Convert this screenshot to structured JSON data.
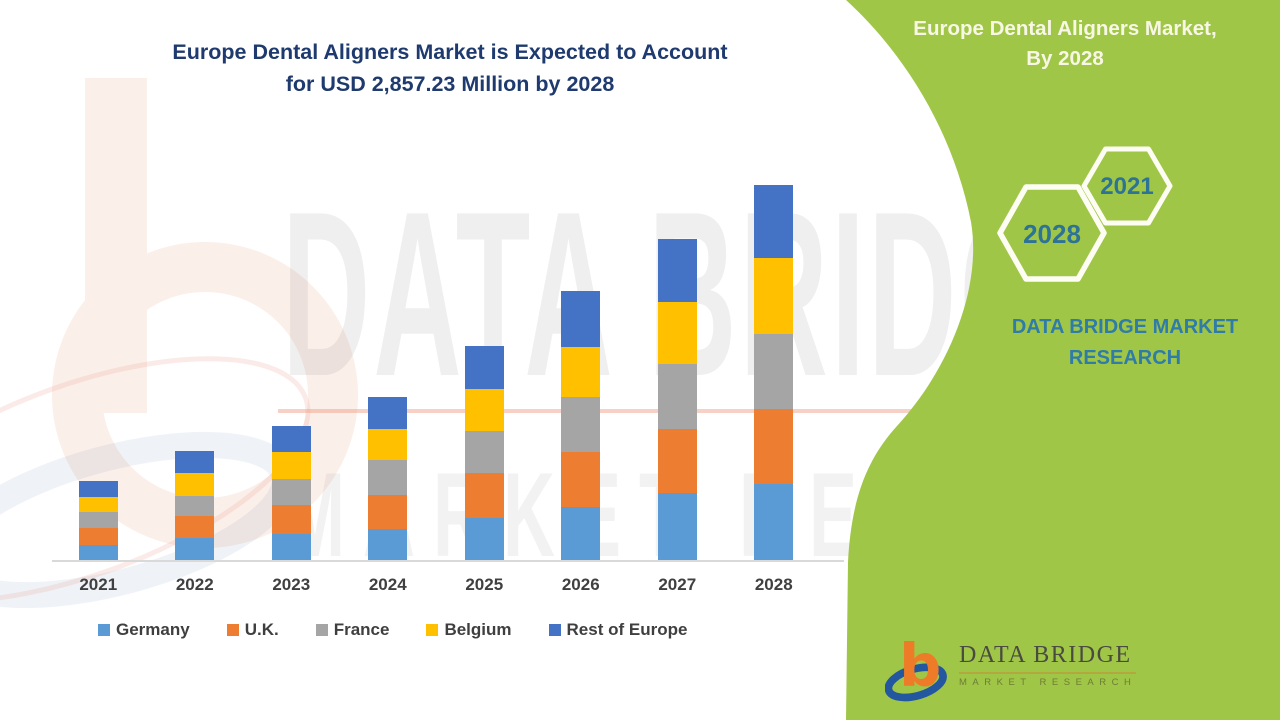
{
  "main_title": {
    "line1": "Europe Dental Aligners Market is Expected to Account",
    "line2": "for USD 2,857.23 Million by 2028",
    "color": "#1E3A6E"
  },
  "chart_data": {
    "type": "bar",
    "stacked": true,
    "title": "Europe Dental Aligners Market is Expected to Account for USD 2,857.23 Million by 2028",
    "categories": [
      "2021",
      "2022",
      "2023",
      "2024",
      "2025",
      "2026",
      "2027",
      "2028"
    ],
    "series": [
      {
        "name": "Germany",
        "color": "#5B9BD5",
        "values": [
          112,
          165,
          196,
          234,
          324,
          406,
          510,
          580
        ]
      },
      {
        "name": "U.K.",
        "color": "#ED7D31",
        "values": [
          133,
          170,
          223,
          261,
          343,
          414,
          487,
          572
        ]
      },
      {
        "name": "France",
        "color": "#A5A5A5",
        "values": [
          119,
          152,
          196,
          266,
          318,
          419,
          495,
          571
        ]
      },
      {
        "name": "Belgium",
        "color": "#FFC000",
        "values": [
          119,
          180,
          206,
          234,
          322,
          388,
          474,
          578
        ]
      },
      {
        "name": "Rest of Europe",
        "color": "#4472C4",
        "values": [
          121,
          161,
          200,
          248,
          325,
          424,
          478,
          557
        ]
      }
    ],
    "xlabel": "",
    "ylabel": "",
    "ylim": [
      0,
      2880
    ],
    "gridlines": false,
    "y_axis_visible": false,
    "legend_position": "bottom",
    "stated_value": "USD 2,857.23 Million by 2028",
    "note": "No y-axis is shown; per-country values are estimated from bar segment heights, scaled so the 2028 total matches the stated USD 2,857.23 Million."
  },
  "right_panel": {
    "bg_color": "#A0C648",
    "title_line1": "Europe Dental Aligners Market,",
    "title_line2": "By 2028",
    "hexagon_large_year": "2028",
    "hexagon_small_year": "2021",
    "brand_line1": "DATA BRIDGE MARKET",
    "brand_line2": "RESEARCH",
    "brand_color": "#2F7CA8"
  },
  "logo": {
    "name": "DATA BRIDGE",
    "tagline": "MARKET RESEARCH"
  },
  "watermark": {
    "text_primary": "DATA BRIDGE",
    "text_secondary": "MARKET RESEARCH"
  }
}
